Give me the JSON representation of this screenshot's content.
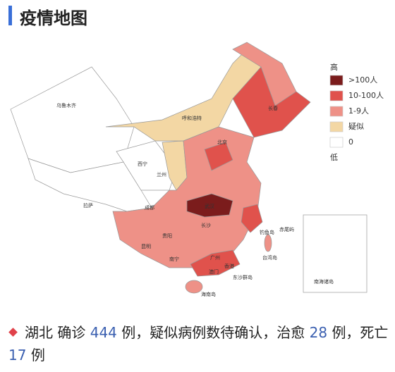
{
  "header": {
    "title": "疫情地图"
  },
  "legend": {
    "top": "高",
    "bottom": "低",
    "items": [
      {
        "label": ">100人",
        "color": "#7b1c1c"
      },
      {
        "label": "10-100人",
        "color": "#e0524c"
      },
      {
        "label": "1-9人",
        "color": "#ee9187"
      },
      {
        "label": "疑似",
        "color": "#f3d7a4"
      },
      {
        "label": "0",
        "color": "#ffffff"
      }
    ]
  },
  "map_labels": [
    "乌鲁木齐",
    "西宁",
    "兰州",
    "呼和浩特",
    "拉萨",
    "成都",
    "武汉",
    "长沙",
    "昆明",
    "贵阳",
    "南宁",
    "广州",
    "香港",
    "澳门",
    "海南岛",
    "台湾岛",
    "东沙群岛",
    "钓鱼岛",
    "赤尾屿",
    "北京",
    "长春",
    "南海诸岛"
  ],
  "summary": {
    "region": "湖北",
    "confirmed_label": "确诊",
    "confirmed": 444,
    "text1": "例，疑似病例数待确认，治愈",
    "cured": 28,
    "text2": "例，死亡",
    "deaths": 17,
    "text3": "例"
  }
}
